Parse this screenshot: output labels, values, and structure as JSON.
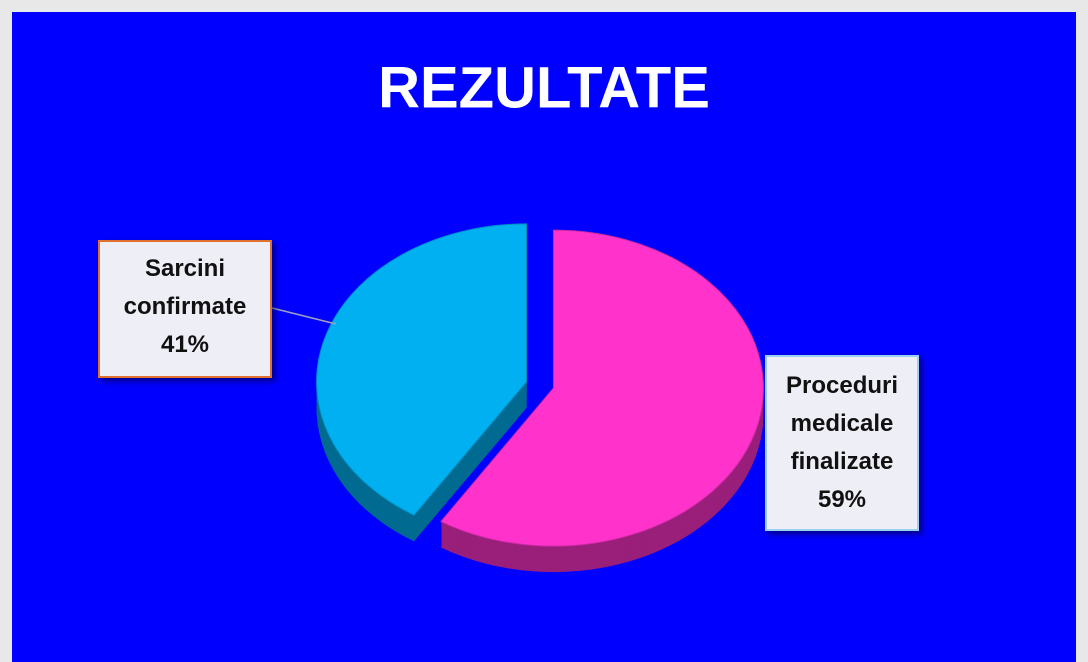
{
  "chart_data": {
    "type": "pie",
    "title": "REZULTATE",
    "categories": [
      "Sarcini confirmate",
      "Proceduri medicale finalizate"
    ],
    "values": [
      41,
      59
    ],
    "value_labels": [
      "41%",
      "59%"
    ],
    "colors": [
      "#00b0f0",
      "#ff33cc"
    ]
  }
}
